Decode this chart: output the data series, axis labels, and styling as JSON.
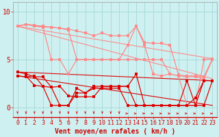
{
  "background_color": "#cff0f0",
  "grid_color": "#a0d8d8",
  "line_color_light": "#ff8888",
  "line_color_dark": "#dd0000",
  "xlabel": "Vent moyen/en rafales ( km/h )",
  "xlabel_color": "#cc0000",
  "xlabel_fontsize": 7,
  "tick_color": "#cc0000",
  "tick_fontsize": 6,
  "xlim": [
    -0.5,
    23.5
  ],
  "ylim": [
    -1.0,
    11.0
  ],
  "yticks": [
    0,
    5,
    10
  ],
  "xticks": [
    0,
    1,
    2,
    3,
    4,
    5,
    6,
    7,
    8,
    9,
    10,
    11,
    12,
    13,
    14,
    15,
    16,
    17,
    18,
    19,
    20,
    21,
    22,
    23
  ],
  "light_line1_x": [
    0,
    1,
    2,
    3,
    4,
    5,
    6,
    7,
    8,
    9,
    10,
    11,
    12,
    13,
    14,
    15,
    16,
    17,
    18,
    19,
    20,
    21,
    22,
    23
  ],
  "light_line1_y": [
    8.5,
    8.7,
    8.6,
    8.5,
    8.4,
    8.3,
    8.2,
    8.0,
    7.8,
    7.5,
    7.8,
    7.5,
    7.5,
    7.5,
    8.5,
    6.8,
    6.7,
    6.7,
    6.5,
    3.4,
    3.3,
    3.3,
    3.2,
    5.1
  ],
  "light_line2_x": [
    0,
    1,
    2,
    3,
    4,
    5,
    6,
    7,
    8,
    9,
    10,
    11,
    12,
    13,
    14,
    15,
    16,
    17,
    18,
    19,
    20,
    21,
    22,
    23
  ],
  "light_line2_y": [
    8.5,
    8.7,
    8.6,
    8.4,
    8.4,
    8.3,
    8.1,
    5.0,
    5.0,
    5.0,
    5.0,
    5.0,
    5.0,
    5.0,
    5.0,
    5.0,
    5.0,
    5.0,
    3.5,
    3.3,
    3.2,
    3.2,
    3.0,
    5.0
  ],
  "light_line3_x": [
    0,
    1,
    2,
    3,
    4,
    5,
    6,
    7,
    8,
    9,
    10,
    11,
    12,
    13,
    14,
    15,
    16,
    17,
    18,
    19,
    20,
    21,
    22,
    23
  ],
  "light_line3_y": [
    8.5,
    8.7,
    8.5,
    8.4,
    5.0,
    5.0,
    3.5,
    5.0,
    5.0,
    5.0,
    5.0,
    5.0,
    5.0,
    6.5,
    8.5,
    6.5,
    3.5,
    3.3,
    3.5,
    3.3,
    0.2,
    0.2,
    5.0,
    5.1
  ],
  "light_trend1_x": [
    0,
    23
  ],
  "light_trend1_y": [
    8.5,
    5.1
  ],
  "light_trend2_x": [
    0,
    23
  ],
  "light_trend2_y": [
    8.5,
    3.0
  ],
  "dark_line1_x": [
    0,
    1,
    2,
    3,
    4,
    5,
    6,
    7,
    8,
    9,
    10,
    11,
    12,
    13,
    14,
    15,
    16,
    17,
    18,
    19,
    20,
    21,
    22,
    23
  ],
  "dark_line1_y": [
    3.7,
    3.5,
    3.2,
    3.2,
    2.1,
    2.2,
    1.2,
    1.1,
    1.1,
    1.1,
    2.2,
    2.2,
    2.2,
    2.2,
    3.5,
    0.2,
    0.2,
    0.2,
    0.2,
    0.2,
    0.2,
    1.0,
    2.8,
    2.8
  ],
  "dark_line2_x": [
    0,
    1,
    2,
    3,
    4,
    5,
    6,
    7,
    8,
    9,
    10,
    11,
    12,
    13,
    14,
    15,
    16,
    17,
    18,
    19,
    20,
    21,
    22,
    23
  ],
  "dark_line2_y": [
    3.3,
    3.2,
    3.3,
    2.2,
    2.1,
    0.2,
    0.2,
    1.5,
    1.5,
    2.2,
    2.2,
    2.2,
    2.2,
    2.2,
    0.2,
    0.2,
    0.2,
    0.2,
    0.2,
    0.2,
    0.2,
    0.2,
    2.8,
    2.8
  ],
  "dark_line3_x": [
    1,
    2,
    3,
    4,
    5,
    6,
    7,
    8,
    9,
    10,
    11,
    12,
    13,
    14,
    15,
    16,
    17,
    18,
    19,
    20,
    21,
    22,
    23
  ],
  "dark_line3_y": [
    3.3,
    2.3,
    2.2,
    0.2,
    0.2,
    0.2,
    2.0,
    1.5,
    2.0,
    2.0,
    2.0,
    2.0,
    0.2,
    0.2,
    0.2,
    0.2,
    0.2,
    0.2,
    0.2,
    2.8,
    0.2,
    0.2,
    2.8
  ],
  "dark_trend1_x": [
    0,
    23
  ],
  "dark_trend1_y": [
    3.7,
    2.8
  ],
  "dark_trend2_x": [
    0,
    23
  ],
  "dark_trend2_y": [
    3.3,
    0.2
  ],
  "arrow_up_x": [
    0,
    1,
    2,
    3,
    4,
    5,
    6,
    7,
    8,
    9,
    10,
    11,
    12
  ],
  "arrow_down_x": [
    13,
    14,
    15,
    16,
    17,
    18,
    19,
    20,
    21,
    22,
    23
  ]
}
